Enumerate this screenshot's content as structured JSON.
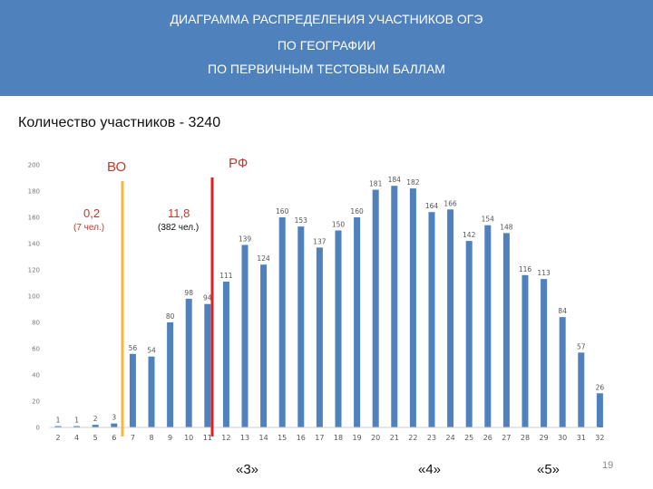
{
  "header": {
    "line1": "ДИАГРАММА РАСПРЕДЕЛЕНИЯ УЧАСТНИКОВ ОГЭ",
    "line2": "ПО ГЕОГРАФИИ",
    "line3": "ПО ПЕРВИЧНЫМ ТЕСТОВЫМ БАЛЛАМ"
  },
  "participants": "Количество участников - 3240",
  "annotations": {
    "vo_label": "ВО",
    "rf_label": "РФ",
    "vo_pct": "0,2",
    "vo_people": "(7 чел.)",
    "rf_pct": "11,8",
    "rf_people": "(382 чел.)"
  },
  "grade_labels": [
    "«3»",
    "«4»",
    "«5»"
  ],
  "page_number": "19",
  "colors": {
    "header": "#4f81bd",
    "bar": "#4f81bd",
    "vo_line": "#f6b73c",
    "rf_line": "#e02020",
    "annotation": "#c0392b"
  },
  "chart_data": {
    "type": "bar",
    "categories": [
      "2",
      "4",
      "5",
      "6",
      "7",
      "8",
      "9",
      "10",
      "11",
      "12",
      "13",
      "14",
      "15",
      "16",
      "17",
      "18",
      "19",
      "20",
      "21",
      "22",
      "23",
      "24",
      "25",
      "26",
      "27",
      "28",
      "29",
      "30",
      "31",
      "32"
    ],
    "values": [
      1,
      1,
      2,
      3,
      56,
      54,
      80,
      98,
      94,
      111,
      139,
      124,
      160,
      153,
      137,
      150,
      160,
      181,
      184,
      182,
      164,
      166,
      142,
      154,
      148,
      116,
      113,
      84,
      57,
      26
    ],
    "ylim": [
      0,
      200
    ],
    "yticks": [
      "0",
      "20",
      "40",
      "60",
      "80",
      "100",
      "120",
      "140",
      "160",
      "180",
      "200"
    ],
    "grid": false
  }
}
